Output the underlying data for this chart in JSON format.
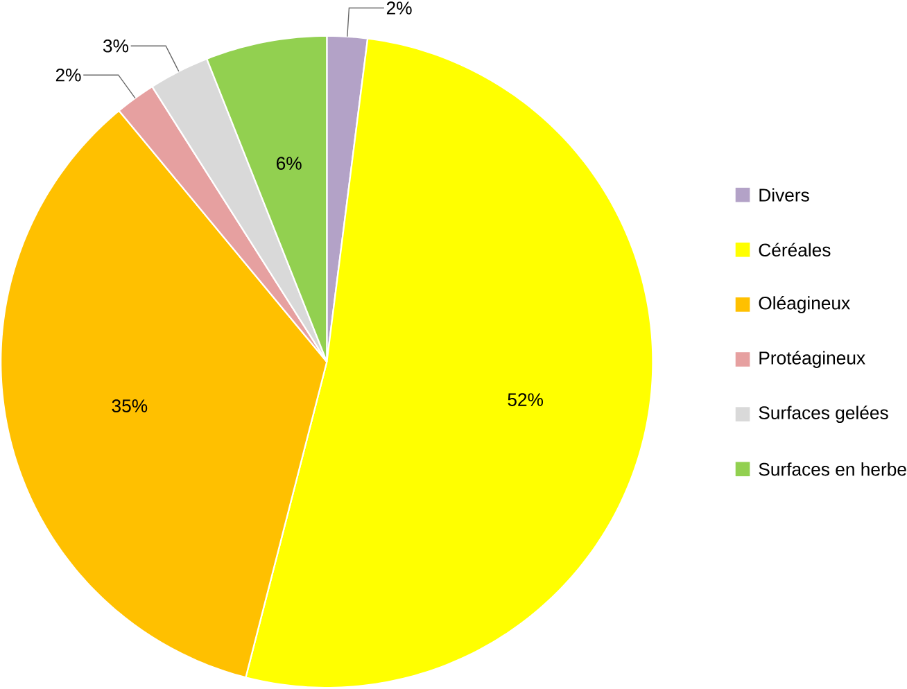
{
  "chart_data": {
    "type": "pie",
    "categories": [
      "Divers",
      "Céréales",
      "Oléagineux",
      "Protéagineux",
      "Surfaces gelées",
      "Surfaces en herbe"
    ],
    "values": [
      2,
      52,
      35,
      2,
      3,
      6
    ],
    "value_labels": [
      "2%",
      "52%",
      "35%",
      "2%",
      "3%",
      "6%"
    ],
    "colors": [
      "#b3a2c7",
      "#ffff00",
      "#ffc000",
      "#e6a0a0",
      "#d9d9d9",
      "#92d050"
    ],
    "legend": "right"
  }
}
